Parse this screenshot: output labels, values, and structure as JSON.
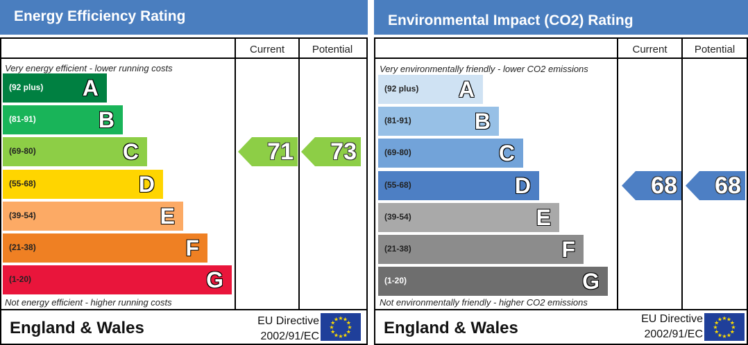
{
  "chart_data": [
    {
      "type": "bar",
      "title": "Energy Efficiency Rating",
      "columns": [
        "Current",
        "Potential"
      ],
      "top_note": "Very energy efficient - lower running costs",
      "bottom_note": "Not energy efficient - higher running costs",
      "bands": [
        {
          "letter": "A",
          "range": "(92 plus)",
          "color": "#008041",
          "text_color": "#ffffff"
        },
        {
          "letter": "B",
          "range": "(81-91)",
          "color": "#19b459",
          "text_color": "#ffffff"
        },
        {
          "letter": "C",
          "range": "(69-80)",
          "color": "#8dce46",
          "text_color": "#222222"
        },
        {
          "letter": "D",
          "range": "(55-68)",
          "color": "#ffd500",
          "text_color": "#222222"
        },
        {
          "letter": "E",
          "range": "(39-54)",
          "color": "#fcaa65",
          "text_color": "#222222"
        },
        {
          "letter": "F",
          "range": "(21-38)",
          "color": "#ef8023",
          "text_color": "#222222"
        },
        {
          "letter": "G",
          "range": "(1-20)",
          "color": "#e9153b",
          "text_color": "#222222"
        }
      ],
      "current": {
        "value": 71,
        "band": "C",
        "color": "#8dce46"
      },
      "potential": {
        "value": 73,
        "band": "C",
        "color": "#8dce46"
      },
      "footer": {
        "country": "England & Wales",
        "directive_line1": "EU Directive",
        "directive_line2": "2002/91/EC"
      }
    },
    {
      "type": "bar",
      "title": "Environmental Impact (CO2) Rating",
      "columns": [
        "Current",
        "Potential"
      ],
      "top_note": "Very environmentally friendly - lower CO2 emissions",
      "bottom_note": "Not environmentally friendly - higher CO2 emissions",
      "bands": [
        {
          "letter": "A",
          "range": "(92 plus)",
          "color": "#cfe2f3",
          "text_color": "#222222"
        },
        {
          "letter": "B",
          "range": "(81-91)",
          "color": "#97c0e6",
          "text_color": "#222222"
        },
        {
          "letter": "C",
          "range": "(69-80)",
          "color": "#72a3d9",
          "text_color": "#222222"
        },
        {
          "letter": "D",
          "range": "(55-68)",
          "color": "#4d7fc4",
          "text_color": "#222222"
        },
        {
          "letter": "E",
          "range": "(39-54)",
          "color": "#a9a9a9",
          "text_color": "#222222"
        },
        {
          "letter": "F",
          "range": "(21-38)",
          "color": "#8c8c8c",
          "text_color": "#222222"
        },
        {
          "letter": "G",
          "range": "(1-20)",
          "color": "#6e6e6e",
          "text_color": "#ffffff"
        }
      ],
      "current": {
        "value": 68,
        "band": "D",
        "color": "#4d7fc4"
      },
      "potential": {
        "value": 68,
        "band": "D",
        "color": "#4d7fc4"
      },
      "footer": {
        "country": "England & Wales",
        "directive_line1": "EU Directive",
        "directive_line2": "2002/91/EC"
      }
    }
  ]
}
